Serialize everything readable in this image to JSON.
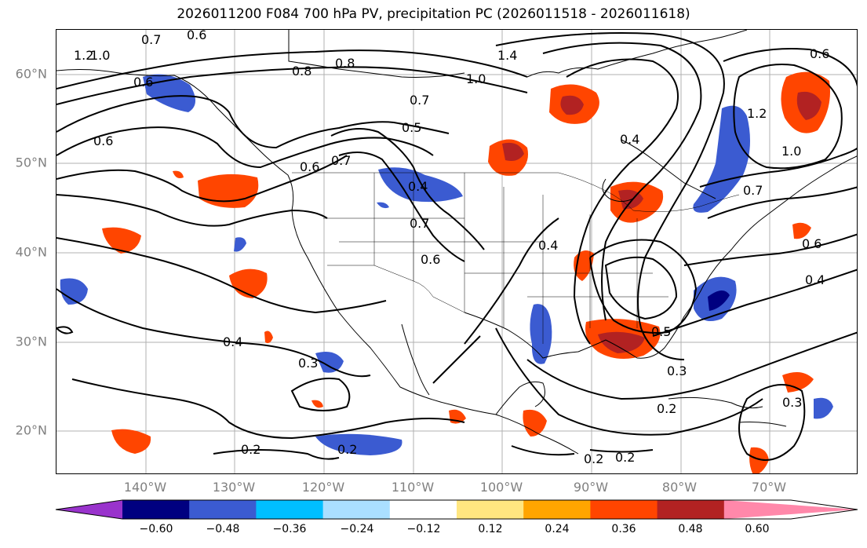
{
  "title": "2026011200 F084 700 hPa PV, precipitation PC (2026011518 - 2026011618)",
  "map": {
    "lat_labels": [
      "60°N",
      "50°N",
      "40°N",
      "30°N",
      "20°N"
    ],
    "lon_labels": [
      "140°W",
      "130°W",
      "120°W",
      "110°W",
      "100°W",
      "90°W",
      "80°W",
      "70°W"
    ],
    "pv_contour_labels": [
      "1.2",
      "1.0",
      "0.6",
      "0.7",
      "0.6",
      "0.8",
      "1.4",
      "1.0",
      "0.7",
      "0.8",
      "0.6",
      "0.5",
      "0.7",
      "0.6",
      "0.4",
      "0.7",
      "0.6",
      "0.4",
      "0.4",
      "1.2",
      "1.0",
      "0.7",
      "0.6",
      "0.4",
      "0.6",
      "0.4",
      "0.3",
      "0.5",
      "0.3",
      "0.2",
      "0.3",
      "0.2",
      "0.2",
      "0.2",
      "0.2"
    ],
    "colors": {
      "gridline": "#b0b0b0",
      "contour": "#000000",
      "tick_label": "#808080"
    }
  },
  "colorbar": {
    "tick_labels": [
      "−0.60",
      "−0.48",
      "−0.36",
      "−0.24",
      "−0.12",
      "0.12",
      "0.24",
      "0.36",
      "0.48",
      "0.60"
    ],
    "colors": [
      "#9933cc",
      "#000080",
      "#3b5bd1",
      "#00bfff",
      "#aadfff",
      "#ffffff",
      "#ffe680",
      "#ffa500",
      "#ff4500",
      "#b22222",
      "#ff88aa"
    ]
  }
}
